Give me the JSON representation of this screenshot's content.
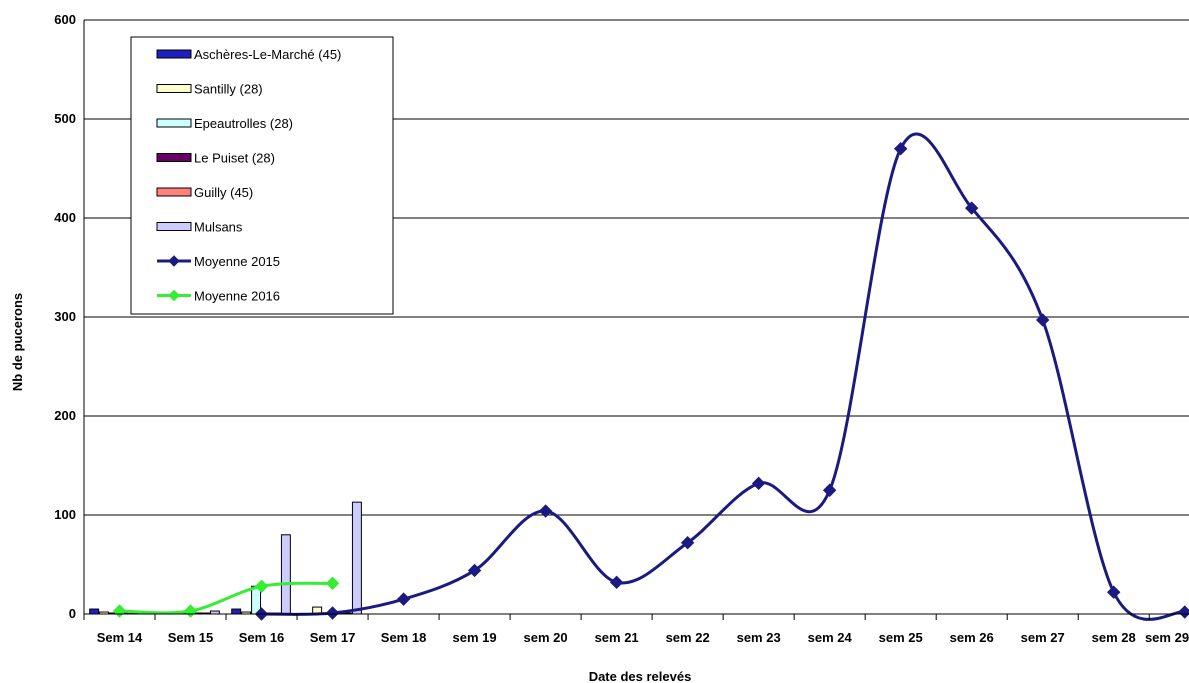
{
  "chart_data": {
    "type": "bar",
    "title": "",
    "xlabel": "Date des relevés",
    "ylabel": "Nb de pucerons",
    "ylim": [
      0,
      600
    ],
    "yticks": [
      0,
      100,
      200,
      300,
      400,
      500,
      600
    ],
    "grid": true,
    "legend_position": "top-left",
    "categories": [
      "Sem 14",
      "Sem 15",
      "Sem 16",
      "Sem 17",
      "Sem 18",
      "sem 19",
      "sem 20",
      "sem 21",
      "sem 22",
      "sem 23",
      "sem 24",
      "sem 25",
      "sem 26",
      "sem 27",
      "sem 28",
      "sem 29"
    ],
    "bar_series": [
      {
        "name": "Aschères-Le-Marché (45)",
        "color": "#1f1fbf",
        "values": [
          5,
          1,
          5,
          null,
          null,
          null,
          null,
          null,
          null,
          null,
          null,
          null,
          null,
          null,
          null,
          null
        ]
      },
      {
        "name": "Santilly (28)",
        "color": "#ffffcc",
        "values": [
          2,
          1,
          2,
          7,
          null,
          null,
          null,
          null,
          null,
          null,
          null,
          null,
          null,
          null,
          null,
          null
        ]
      },
      {
        "name": "Epeautrolles (28)",
        "color": "#ccffff",
        "values": [
          1,
          1,
          28,
          1,
          null,
          null,
          null,
          null,
          null,
          null,
          null,
          null,
          null,
          null,
          null,
          null
        ]
      },
      {
        "name": "Le Puiset (28)",
        "color": "#660066",
        "values": [
          1,
          1,
          1,
          1,
          null,
          null,
          null,
          null,
          null,
          null,
          null,
          null,
          null,
          null,
          null,
          null
        ]
      },
      {
        "name": "Guilly (45)",
        "color": "#ff8080",
        "values": [
          1,
          1,
          1,
          1,
          null,
          null,
          null,
          null,
          null,
          null,
          null,
          null,
          null,
          null,
          null,
          null
        ]
      },
      {
        "name": "Mulsans",
        "color": "#ccccff",
        "values": [
          2,
          3,
          80,
          113,
          null,
          null,
          null,
          null,
          null,
          null,
          null,
          null,
          null,
          null,
          null,
          null
        ]
      }
    ],
    "line_series": [
      {
        "name": "Moyenne 2015",
        "color": "#1a1a80",
        "points": [
          {
            "x": "Sem 16",
            "y": 0
          },
          {
            "x": "Sem 17",
            "y": 1
          },
          {
            "x": "Sem 18",
            "y": 15
          },
          {
            "x": "sem 19",
            "y": 44
          },
          {
            "x": "sem 20",
            "y": 104
          },
          {
            "x": "sem 21",
            "y": 32
          },
          {
            "x": "sem 22",
            "y": 72
          },
          {
            "x": "sem 23",
            "y": 132
          },
          {
            "x": "sem 24",
            "y": 125
          },
          {
            "x": "sem 25",
            "y": 470
          },
          {
            "x": "sem 26",
            "y": 410
          },
          {
            "x": "sem 27",
            "y": 297
          },
          {
            "x": "sem 28",
            "y": 22
          },
          {
            "x": "sem 29",
            "y": 2
          }
        ]
      },
      {
        "name": "Moyenne 2016",
        "color": "#33ee33",
        "points": [
          {
            "x": "Sem 14",
            "y": 3
          },
          {
            "x": "Sem 15",
            "y": 3
          },
          {
            "x": "Sem 16",
            "y": 28
          },
          {
            "x": "Sem 17",
            "y": 31
          }
        ]
      }
    ],
    "legend": [
      "Aschères-Le-Marché (45)",
      "Santilly (28)",
      "Epeautrolles (28)",
      "Le Puiset (28)",
      "Guilly (45)",
      "Mulsans",
      "Moyenne 2015",
      "Moyenne 2016"
    ]
  }
}
